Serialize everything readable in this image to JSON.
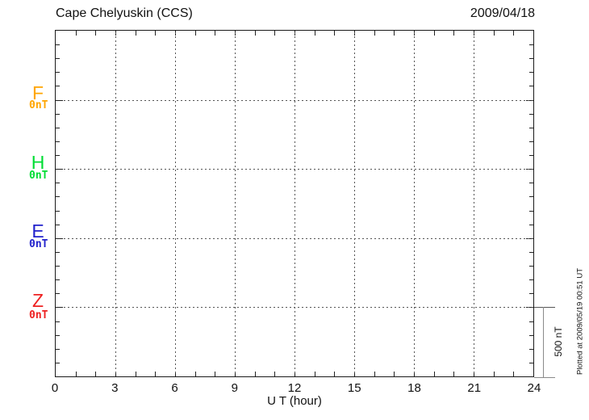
{
  "header": {
    "station": "Cape Chelyuskin (CCS)",
    "date": "2009/04/18"
  },
  "x_axis": {
    "label": "U T (hour)",
    "ticks": [
      "0",
      "3",
      "6",
      "9",
      "12",
      "15",
      "18",
      "21",
      "24"
    ]
  },
  "channels": [
    {
      "name": "F",
      "value": "0nT",
      "color": "#FFA500"
    },
    {
      "name": "H",
      "value": "0nT",
      "color": "#00DD33"
    },
    {
      "name": "E",
      "value": "0nT",
      "color": "#2222CC"
    },
    {
      "name": "Z",
      "value": "0nT",
      "color": "#EE2222"
    }
  ],
  "scale_bar": {
    "label": "500 nT"
  },
  "footer": {
    "plotted_at": "Plotted at 2009/05/19 00:51 UT"
  },
  "chart_data": {
    "type": "line",
    "title": "Cape Chelyuskin (CCS)",
    "subtitle": "2009/04/18",
    "xlabel": "U T (hour)",
    "x_range_hours": [
      0,
      24
    ],
    "x_ticks": [
      0,
      3,
      6,
      9,
      12,
      15,
      18,
      21,
      24
    ],
    "y_scale": "500 nT per channel division",
    "grid": true,
    "legend_position": "left margin",
    "series": [
      {
        "name": "F",
        "baseline_label": "0nT",
        "color": "#FFA500",
        "values": []
      },
      {
        "name": "H",
        "baseline_label": "0nT",
        "color": "#00DD33",
        "values": []
      },
      {
        "name": "E",
        "baseline_label": "0nT",
        "color": "#2222CC",
        "values": []
      },
      {
        "name": "Z",
        "baseline_label": "0nT",
        "color": "#EE2222",
        "values": []
      }
    ]
  }
}
